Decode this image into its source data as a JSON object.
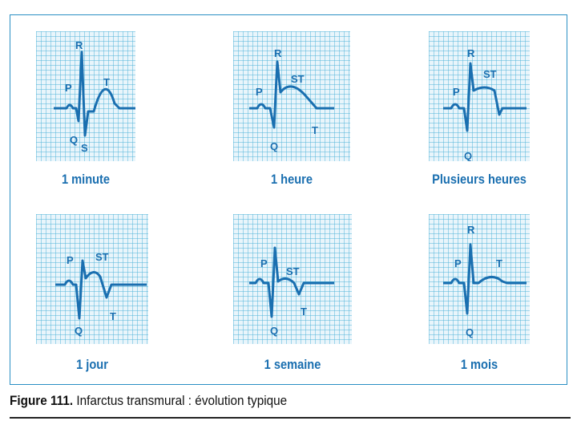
{
  "figure": {
    "label": "Figure 111.",
    "title": "Infarctus transmural : évolution typique"
  },
  "colors": {
    "grid": "#4fb3d8",
    "grid_bg": "#e9f5fb",
    "trace": "#1a6fb0",
    "frame": "#2a8fc4"
  },
  "panels": [
    {
      "caption": "1 minute",
      "labels": {
        "R": "R",
        "P": "P",
        "T": "T",
        "Q": "Q",
        "S": "S"
      }
    },
    {
      "caption": "1 heure",
      "labels": {
        "R": "R",
        "P": "P",
        "ST": "ST",
        "Q": "Q",
        "T": "T"
      }
    },
    {
      "caption": "Plusieurs heures",
      "labels": {
        "R": "R",
        "P": "P",
        "ST": "ST",
        "Q": "Q"
      }
    },
    {
      "caption": "1 jour",
      "labels": {
        "P": "P",
        "ST": "ST",
        "Q": "Q",
        "T": "T"
      }
    },
    {
      "caption": "1 semaine",
      "labels": {
        "P": "P",
        "ST": "ST",
        "Q": "Q",
        "T": "T"
      }
    },
    {
      "caption": "1 mois",
      "labels": {
        "R": "R",
        "P": "P",
        "T": "T",
        "Q": "Q"
      }
    }
  ]
}
